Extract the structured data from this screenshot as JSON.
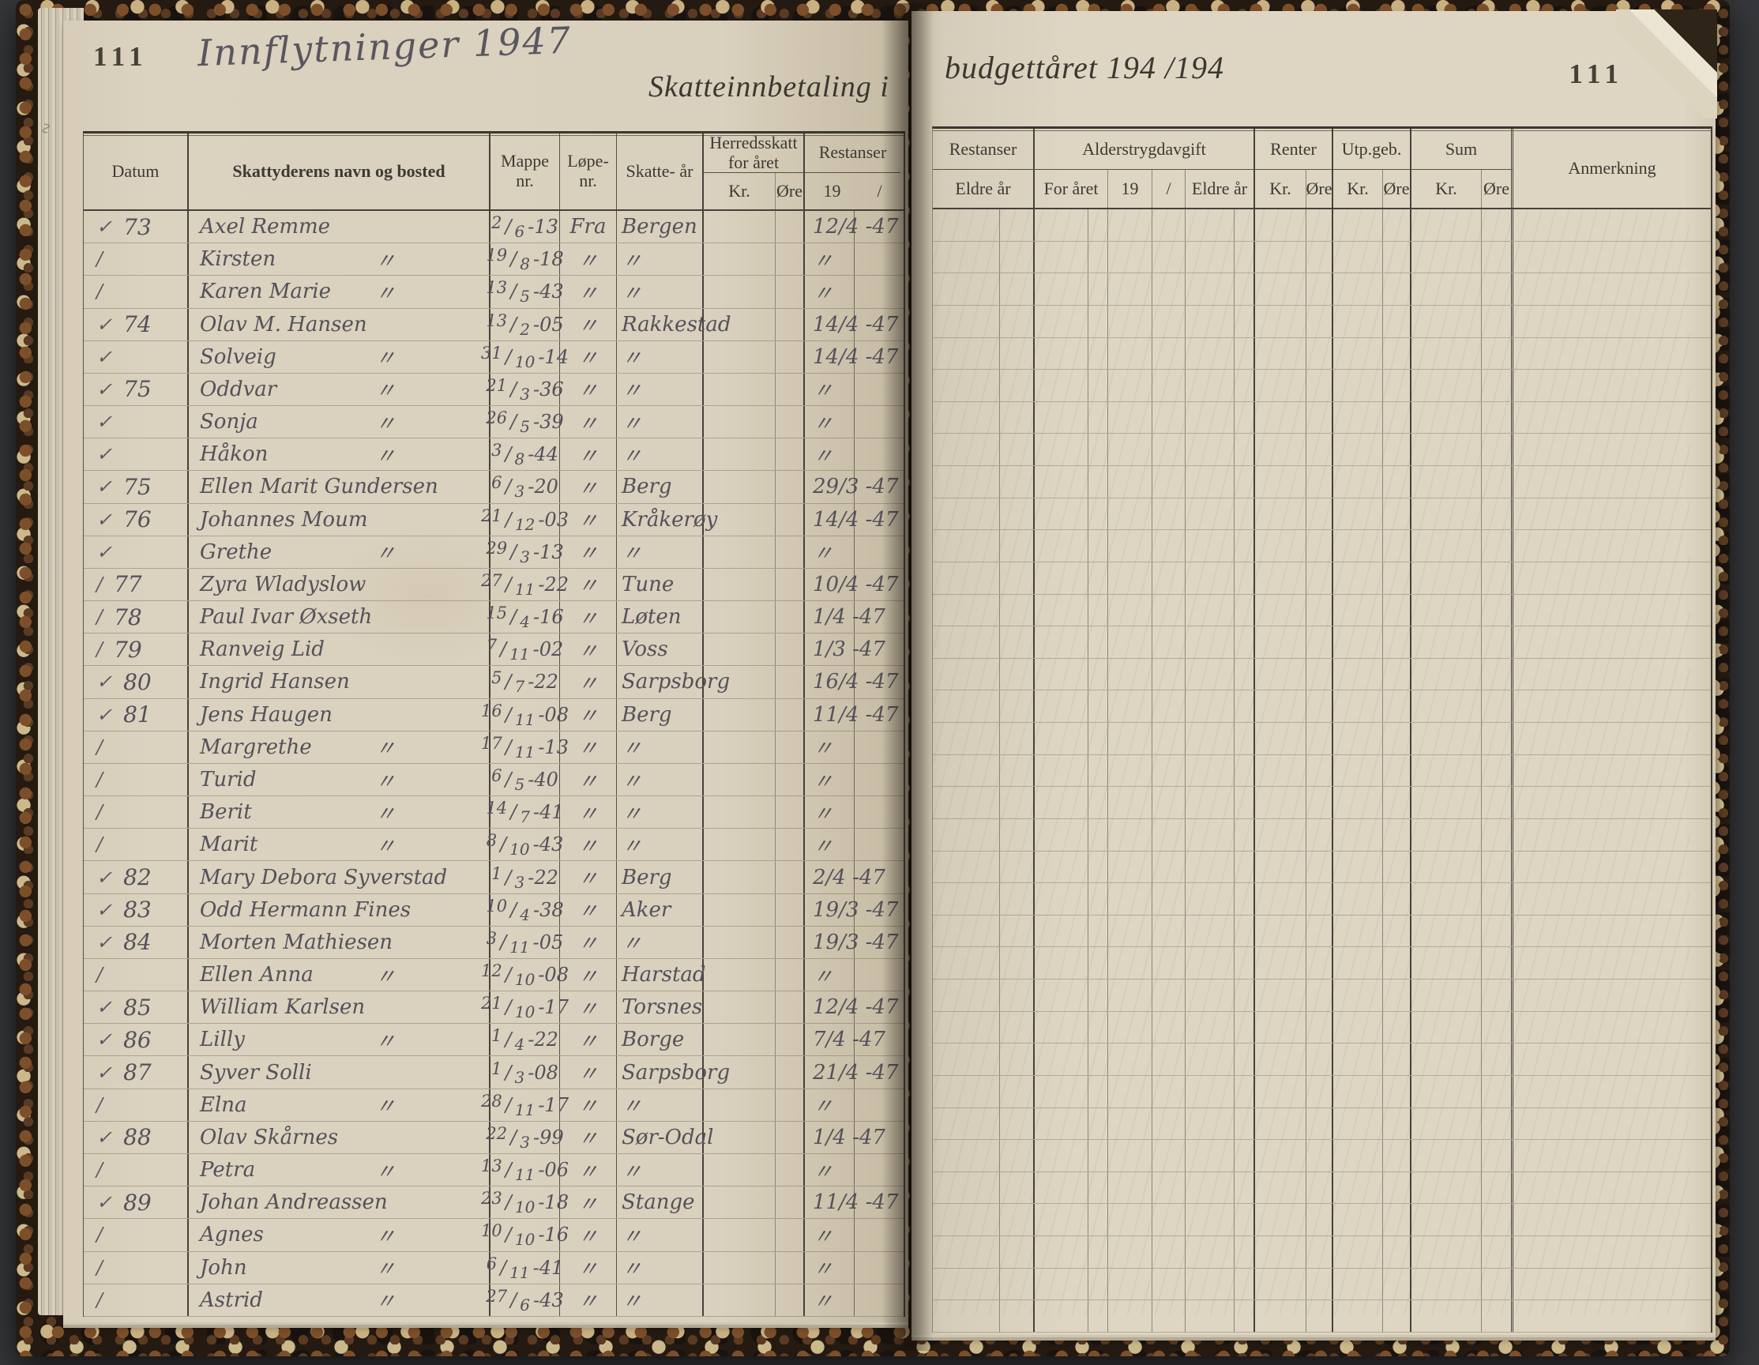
{
  "left_page": {
    "page_number": "111",
    "handwritten_title": "Innflytninger  1947",
    "printed_title_fragment": "Skatteinnbetaling i",
    "headers": {
      "datum": "Datum",
      "name": "Skattyderens navn og bosted",
      "mappe": "Mappe nr.",
      "lope": "Løpe- nr.",
      "skatteaar": "Skatte- år",
      "herredsskatt": "Herredsskatt for året",
      "kr": "Kr.",
      "ore": "Øre",
      "restanser": "Restanser",
      "rest_year": "19",
      "rest_slash": "/"
    },
    "rows": [
      {
        "mark": "✓",
        "no": "73",
        "name": "Axel Remme",
        "ditto": "",
        "d": "2",
        "m": "6",
        "y": "-13",
        "fra": "Fra",
        "sted": "Bergen",
        "rest": "12/4 -47"
      },
      {
        "mark": "/",
        "no": "",
        "name": "Kirsten",
        "ditto": "〃",
        "d": "19",
        "m": "8",
        "y": "-18",
        "fra": "〃",
        "sted": "〃",
        "rest": "〃"
      },
      {
        "mark": "/",
        "no": "",
        "name": "Karen Marie",
        "ditto": "〃",
        "d": "13",
        "m": "5",
        "y": "-43",
        "fra": "〃",
        "sted": "〃",
        "rest": "〃"
      },
      {
        "mark": "✓",
        "no": "74",
        "name": "Olav M. Hansen",
        "ditto": "",
        "d": "13",
        "m": "2",
        "y": "-05",
        "fra": "〃",
        "sted": "Rakkestad",
        "rest": "14/4 -47"
      },
      {
        "mark": "✓",
        "no": "",
        "name": "Solveig",
        "ditto": "〃",
        "d": "31",
        "m": "10",
        "y": "-14",
        "fra": "〃",
        "sted": "〃",
        "rest": "14/4 -47"
      },
      {
        "mark": "✓",
        "no": "75",
        "name": "Oddvar",
        "ditto": "〃",
        "d": "21",
        "m": "3",
        "y": "-36",
        "fra": "〃",
        "sted": "〃",
        "rest": "〃"
      },
      {
        "mark": "✓",
        "no": "",
        "name": "Sonja",
        "ditto": "〃",
        "d": "26",
        "m": "5",
        "y": "-39",
        "fra": "〃",
        "sted": "〃",
        "rest": "〃"
      },
      {
        "mark": "✓",
        "no": "",
        "name": "Håkon",
        "ditto": "〃",
        "d": "3",
        "m": "8",
        "y": "-44",
        "fra": "〃",
        "sted": "〃",
        "rest": "〃"
      },
      {
        "mark": "✓",
        "no": "75",
        "name": "Ellen Marit Gundersen",
        "ditto": "",
        "d": "6",
        "m": "3",
        "y": "-20",
        "fra": "〃",
        "sted": "Berg",
        "rest": "29/3 -47"
      },
      {
        "mark": "✓",
        "no": "76",
        "name": "Johannes Moum",
        "ditto": "",
        "d": "21",
        "m": "12",
        "y": "-03",
        "fra": "〃",
        "sted": "Kråkerøy",
        "rest": "14/4 -47"
      },
      {
        "mark": "✓",
        "no": "",
        "name": "Grethe",
        "ditto": "〃",
        "d": "29",
        "m": "3",
        "y": "-13",
        "fra": "〃",
        "sted": "〃",
        "rest": "〃"
      },
      {
        "mark": "/",
        "no": "77",
        "name": "Zyra Wladyslow",
        "ditto": "",
        "d": "27",
        "m": "11",
        "y": "-22",
        "fra": "〃",
        "sted": "Tune",
        "rest": "10/4 -47"
      },
      {
        "mark": "/",
        "no": "78",
        "name": "Paul Ivar Øxseth",
        "ditto": "",
        "d": "15",
        "m": "4",
        "y": "-16",
        "fra": "〃",
        "sted": "Løten",
        "rest": "1/4 -47"
      },
      {
        "mark": "/",
        "no": "79",
        "name": "Ranveig Lid",
        "ditto": "",
        "d": "7",
        "m": "11",
        "y": "-02",
        "fra": "〃",
        "sted": "Voss",
        "rest": "1/3 -47"
      },
      {
        "mark": "✓",
        "no": "80",
        "name": "Ingrid Hansen",
        "ditto": "",
        "d": "5",
        "m": "7",
        "y": "-22",
        "fra": "〃",
        "sted": "Sarpsborg",
        "rest": "16/4 -47"
      },
      {
        "mark": "✓",
        "no": "81",
        "name": "Jens Haugen",
        "ditto": "",
        "d": "16",
        "m": "11",
        "y": "-08",
        "fra": "〃",
        "sted": "Berg",
        "rest": "11/4 -47"
      },
      {
        "mark": "/",
        "no": "",
        "name": "Margrethe",
        "ditto": "〃",
        "d": "17",
        "m": "11",
        "y": "-13",
        "fra": "〃",
        "sted": "〃",
        "rest": "〃"
      },
      {
        "mark": "/",
        "no": "",
        "name": "Turid",
        "ditto": "〃",
        "d": "6",
        "m": "5",
        "y": "-40",
        "fra": "〃",
        "sted": "〃",
        "rest": "〃"
      },
      {
        "mark": "/",
        "no": "",
        "name": "Berit",
        "ditto": "〃",
        "d": "14",
        "m": "7",
        "y": "-41",
        "fra": "〃",
        "sted": "〃",
        "rest": "〃"
      },
      {
        "mark": "/",
        "no": "",
        "name": "Marit",
        "ditto": "〃",
        "d": "8",
        "m": "10",
        "y": "-43",
        "fra": "〃",
        "sted": "〃",
        "rest": "〃"
      },
      {
        "mark": "✓",
        "no": "82",
        "name": "Mary Debora Syverstad",
        "ditto": "",
        "d": "1",
        "m": "3",
        "y": "-22",
        "fra": "〃",
        "sted": "Berg",
        "rest": "2/4 -47"
      },
      {
        "mark": "✓",
        "no": "83",
        "name": "Odd Hermann Fines",
        "ditto": "",
        "d": "10",
        "m": "4",
        "y": "-38",
        "fra": "〃",
        "sted": "Aker",
        "rest": "19/3 -47"
      },
      {
        "mark": "✓",
        "no": "84",
        "name": "Morten Mathiesen",
        "ditto": "",
        "d": "3",
        "m": "11",
        "y": "-05",
        "fra": "〃",
        "sted": "〃",
        "rest": "19/3 -47"
      },
      {
        "mark": "/",
        "no": "",
        "name": "Ellen Anna",
        "ditto": "〃",
        "d": "12",
        "m": "10",
        "y": "-08",
        "fra": "〃",
        "sted": "Harstad",
        "rest": "〃"
      },
      {
        "mark": "✓",
        "no": "85",
        "name": "William Karlsen",
        "ditto": "",
        "d": "21",
        "m": "10",
        "y": "-17",
        "fra": "〃",
        "sted": "Torsnes",
        "rest": "12/4 -47"
      },
      {
        "mark": "✓",
        "no": "86",
        "name": "Lilly",
        "ditto": "〃",
        "d": "1",
        "m": "4",
        "y": "-22",
        "fra": "〃",
        "sted": "Borge",
        "rest": "7/4 -47"
      },
      {
        "mark": "✓",
        "no": "87",
        "name": "Syver Solli",
        "ditto": "",
        "d": "1",
        "m": "3",
        "y": "-08",
        "fra": "〃",
        "sted": "Sarpsborg",
        "rest": "21/4 -47"
      },
      {
        "mark": "/",
        "no": "",
        "name": "Elna",
        "ditto": "〃",
        "d": "28",
        "m": "11",
        "y": "-17",
        "fra": "〃",
        "sted": "〃",
        "rest": "〃"
      },
      {
        "mark": "✓",
        "no": "88",
        "name": "Olav Skårnes",
        "ditto": "",
        "d": "22",
        "m": "3",
        "y": "-99",
        "fra": "〃",
        "sted": "Sør-Odal",
        "rest": "1/4 -47"
      },
      {
        "mark": "/",
        "no": "",
        "name": "Petra",
        "ditto": "〃",
        "d": "13",
        "m": "11",
        "y": "-06",
        "fra": "〃",
        "sted": "〃",
        "rest": "〃"
      },
      {
        "mark": "✓",
        "no": "89",
        "name": "Johan Andreassen",
        "ditto": "",
        "d": "23",
        "m": "10",
        "y": "-18",
        "fra": "〃",
        "sted": "Stange",
        "rest": "11/4 -47"
      },
      {
        "mark": "/",
        "no": "",
        "name": "Agnes",
        "ditto": "〃",
        "d": "10",
        "m": "10",
        "y": "-16",
        "fra": "〃",
        "sted": "〃",
        "rest": "〃"
      },
      {
        "mark": "/",
        "no": "",
        "name": "John",
        "ditto": "〃",
        "d": "6",
        "m": "11",
        "y": "-41",
        "fra": "〃",
        "sted": "〃",
        "rest": "〃"
      },
      {
        "mark": "/",
        "no": "",
        "name": "Astrid",
        "ditto": "〃",
        "d": "27",
        "m": "6",
        "y": "-43",
        "fra": "〃",
        "sted": "〃",
        "rest": "〃"
      }
    ]
  },
  "right_page": {
    "page_number": "111",
    "printed_title_fragment": "budgettåret 194  /194",
    "headers": {
      "restanser": "Restanser",
      "alderstrygdavgift": "Alderstrygdavgift",
      "renter": "Renter",
      "utpgeb": "Utp.geb.",
      "sum": "Sum",
      "anmerkning": "Anmerkning",
      "eldre_ar": "Eldre år",
      "for_aret": "For året",
      "year19": "19",
      "slash": "/",
      "eldre_ar2": "Eldre år",
      "kr": "Kr.",
      "ore": "Øre"
    }
  }
}
